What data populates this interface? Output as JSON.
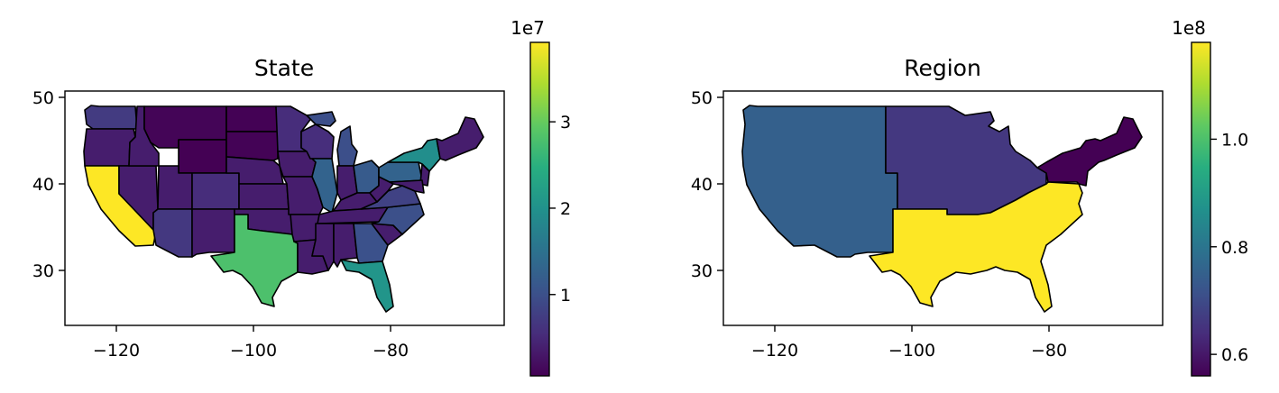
{
  "chart_data": [
    {
      "type": "choropleth",
      "title": "State",
      "xlabel": "",
      "ylabel": "",
      "xticks": [
        "−120",
        "−100",
        "−80"
      ],
      "yticks": [
        "30",
        "40",
        "50"
      ],
      "xlim": [
        -127,
        -63
      ],
      "ylim": [
        23,
        51
      ],
      "colorbar": {
        "cmap": "viridis",
        "min": 0.058,
        "max": 3.92,
        "ticks": [
          "1",
          "2",
          "3"
        ],
        "tick_values": [
          1,
          2,
          3
        ],
        "offset_text": "1e7"
      },
      "regions": [
        {
          "name": "California",
          "value": 3.92
        },
        {
          "name": "Texas",
          "value": 2.8
        },
        {
          "name": "Florida",
          "value": 2.05
        },
        {
          "name": "New York",
          "value": 1.94
        },
        {
          "name": "Pennsylvania",
          "value": 1.28
        },
        {
          "name": "Illinois",
          "value": 1.28
        },
        {
          "name": "Ohio",
          "value": 1.16
        },
        {
          "name": "Georgia",
          "value": 1.01
        },
        {
          "name": "North Carolina",
          "value": 1.0
        },
        {
          "name": "Michigan",
          "value": 0.99
        },
        {
          "name": "Arizona",
          "value": 0.68
        },
        {
          "name": "Washington",
          "value": 0.72
        },
        {
          "name": "Virginia",
          "value": 0.82
        },
        {
          "name": "Colorado",
          "value": 0.54
        },
        {
          "name": "Minnesota",
          "value": 0.54
        },
        {
          "name": "Wisconsin",
          "value": 0.56
        },
        {
          "name": "Montana",
          "value": 0.1
        },
        {
          "name": "Wyoming",
          "value": 0.058
        },
        {
          "name": "North Dakota",
          "value": 0.07
        },
        {
          "name": "South Dakota",
          "value": 0.085
        }
      ]
    },
    {
      "type": "choropleth",
      "title": "Region",
      "xlabel": "",
      "ylabel": "",
      "xticks": [
        "−120",
        "−100",
        "−80"
      ],
      "yticks": [
        "30",
        "40",
        "50"
      ],
      "xlim": [
        -127,
        -63
      ],
      "ylim": [
        23,
        51
      ],
      "colorbar": {
        "cmap": "viridis",
        "min": 0.56,
        "max": 1.18,
        "ticks": [
          "0.6",
          "0.8",
          "1.0"
        ],
        "tick_values": [
          0.6,
          0.8,
          1.0
        ],
        "offset_text": "1e8"
      },
      "regions": [
        {
          "name": "West",
          "value": 0.75
        },
        {
          "name": "Midwest",
          "value": 0.66
        },
        {
          "name": "Northeast",
          "value": 0.56
        },
        {
          "name": "South",
          "value": 1.18
        }
      ]
    }
  ]
}
